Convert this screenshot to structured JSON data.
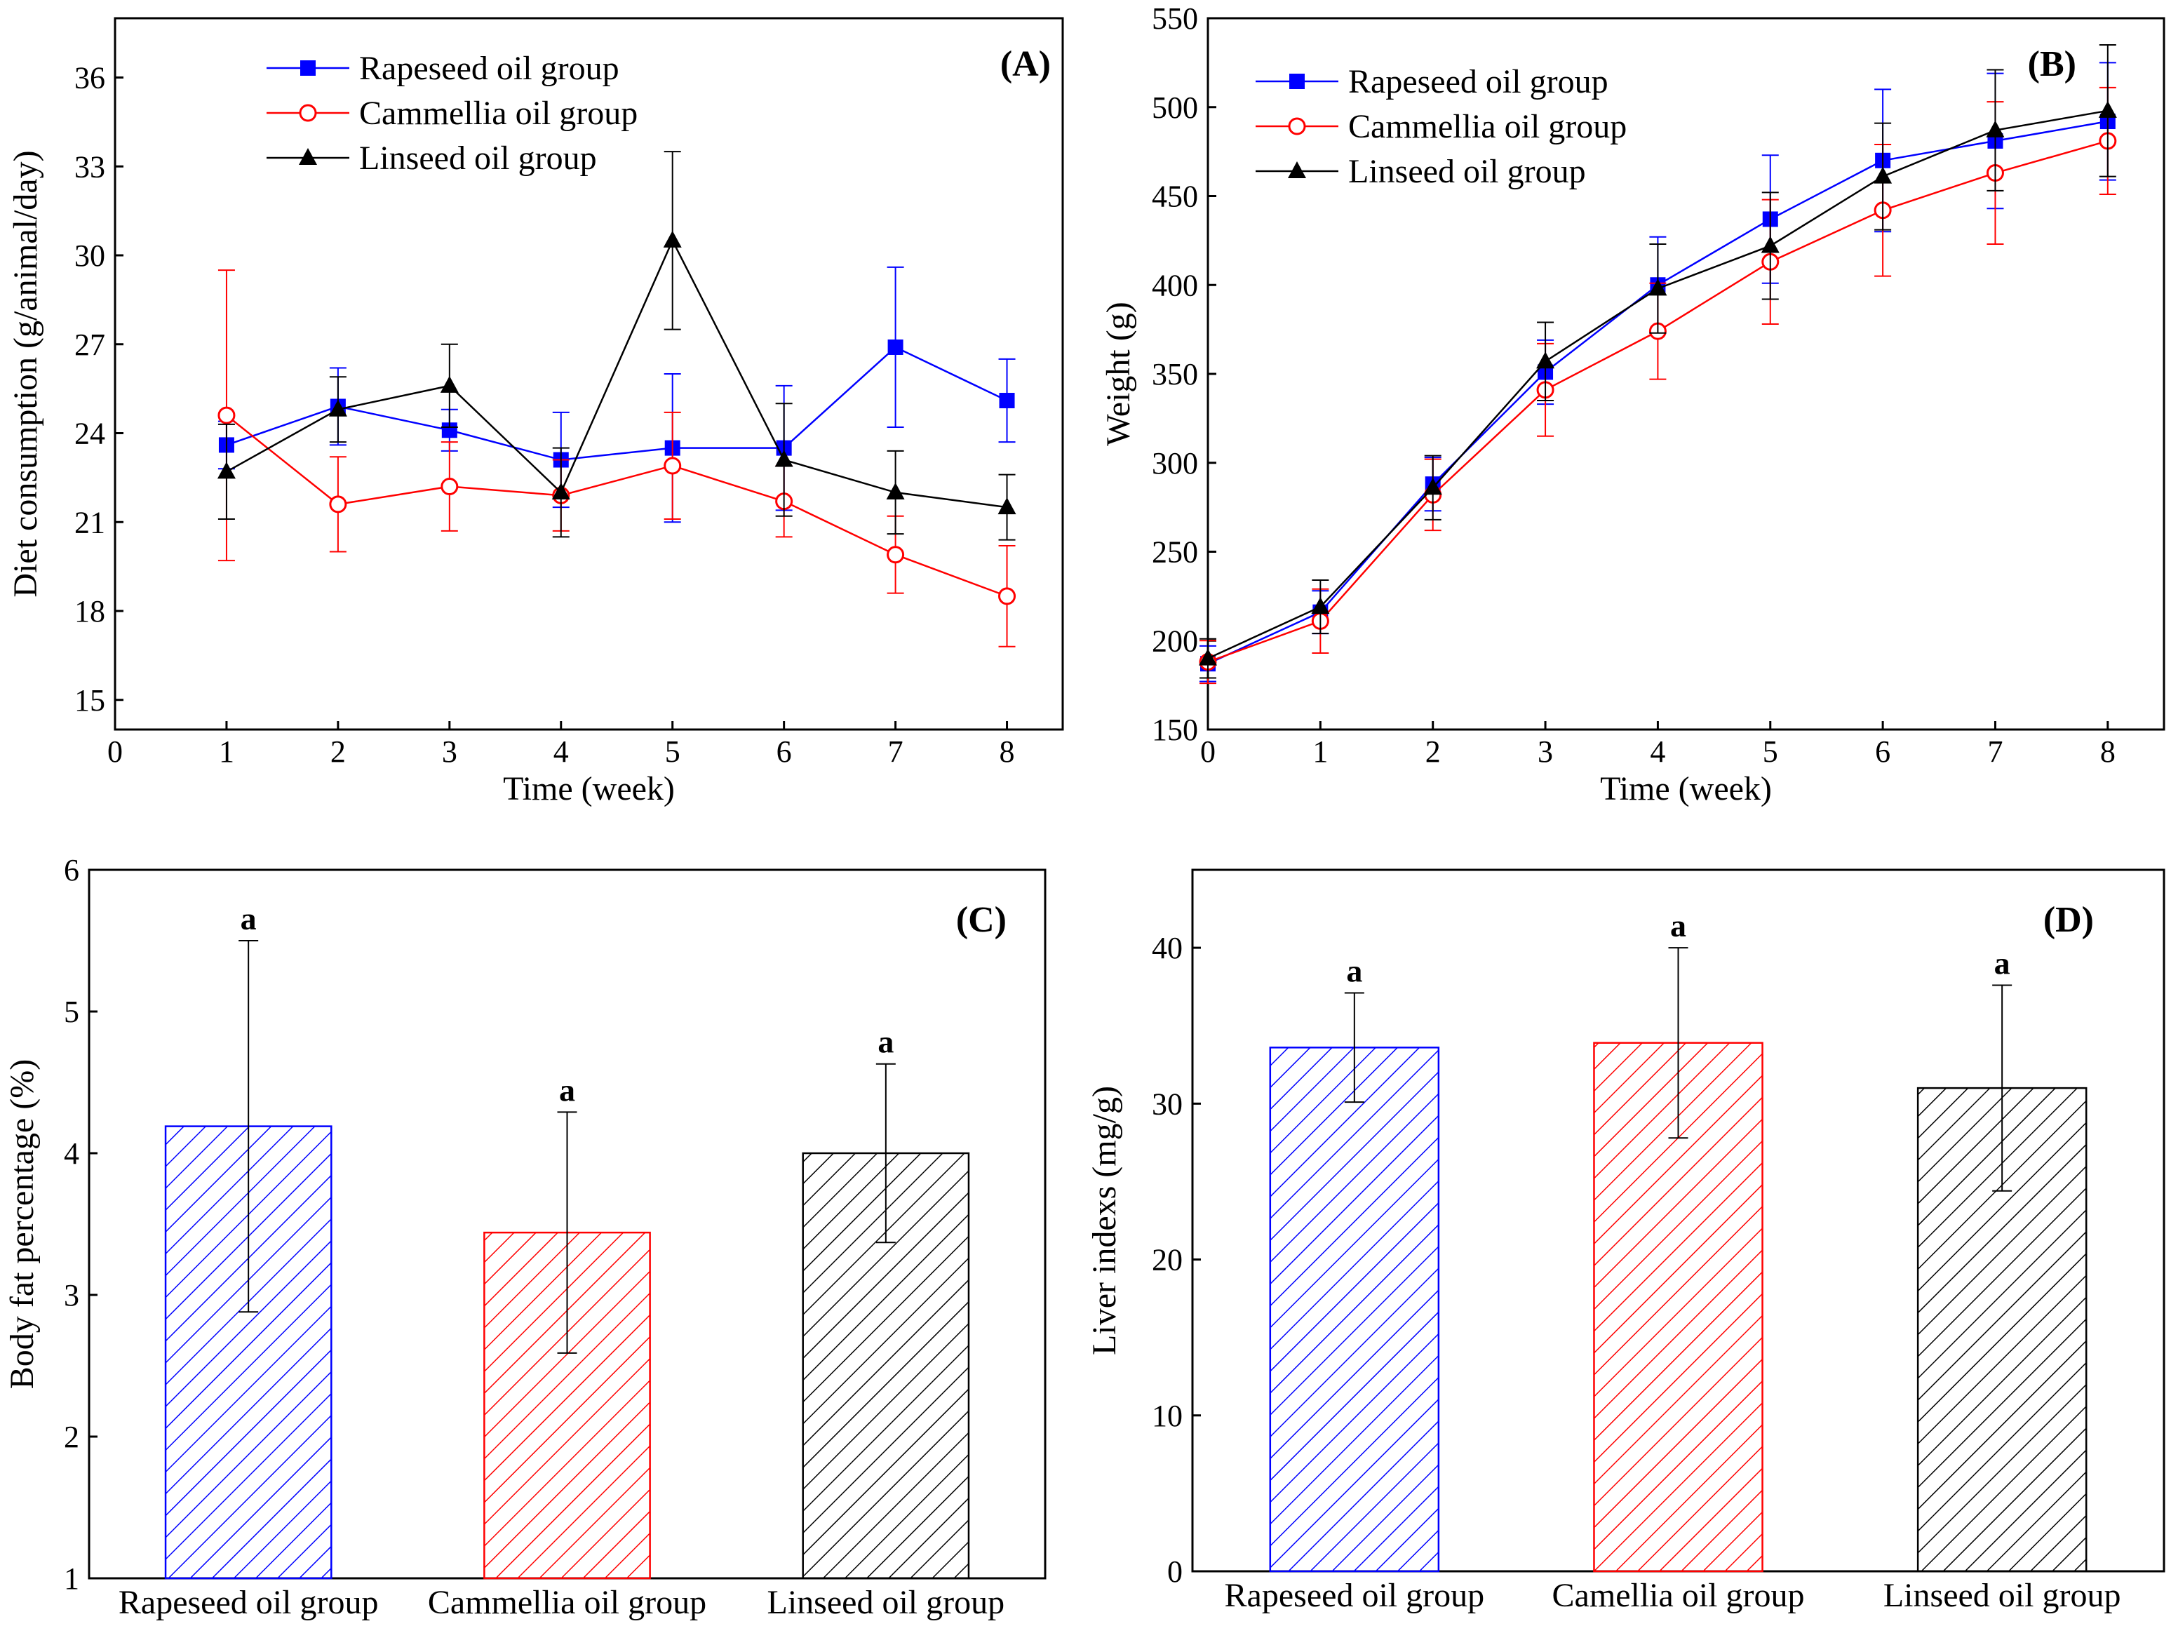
{
  "chart_data": [
    {
      "panel": "(A)",
      "type": "line",
      "xlabel": "Time (week)",
      "ylabel": "Diet consumption (g/animal/day)",
      "xlim": [
        0,
        8.5
      ],
      "ylim": [
        14,
        38
      ],
      "xticks": [
        0,
        1,
        2,
        3,
        4,
        5,
        6,
        7,
        8
      ],
      "yticks": [
        15,
        18,
        21,
        24,
        27,
        30,
        33,
        36
      ],
      "legend_position": "top-left",
      "series": [
        {
          "name": "Rapeseed oil group",
          "marker": "square-filled",
          "color": "#0000ff",
          "x": [
            1,
            2,
            3,
            4,
            5,
            6,
            7,
            8
          ],
          "values": [
            23.6,
            24.9,
            24.1,
            23.1,
            23.5,
            23.5,
            26.9,
            25.1
          ],
          "errors": [
            0.8,
            1.3,
            0.7,
            1.6,
            2.5,
            2.1,
            2.7,
            1.4
          ]
        },
        {
          "name": "Cammellia oil group",
          "marker": "circle-open",
          "color": "#ff0000",
          "x": [
            1,
            2,
            3,
            4,
            5,
            6,
            7,
            8
          ],
          "values": [
            24.6,
            21.6,
            22.2,
            21.9,
            22.9,
            21.7,
            19.9,
            18.5
          ],
          "errors": [
            4.9,
            1.6,
            1.5,
            1.2,
            1.8,
            1.2,
            1.3,
            1.7
          ]
        },
        {
          "name": "Linseed oil group",
          "marker": "triangle-filled",
          "color": "#000000",
          "x": [
            1,
            2,
            3,
            4,
            5,
            6,
            7,
            8
          ],
          "values": [
            22.7,
            24.8,
            25.6,
            22.0,
            30.5,
            23.1,
            22.0,
            21.5
          ],
          "errors": [
            1.6,
            1.1,
            1.4,
            1.5,
            3.0,
            1.9,
            1.4,
            1.1
          ]
        }
      ]
    },
    {
      "panel": "(B)",
      "type": "line",
      "xlabel": "Time (week)",
      "ylabel": "Weight (g)",
      "xlim": [
        0,
        8.5
      ],
      "ylim": [
        150,
        550
      ],
      "xticks": [
        0,
        1,
        2,
        3,
        4,
        5,
        6,
        7,
        8
      ],
      "yticks": [
        150,
        200,
        250,
        300,
        350,
        400,
        450,
        500,
        550
      ],
      "legend_position": "top-left",
      "series": [
        {
          "name": "Rapeseed oil group",
          "marker": "square-filled",
          "color": "#0000ff",
          "x": [
            0,
            1,
            2,
            3,
            4,
            5,
            6,
            7,
            8
          ],
          "values": [
            187,
            216,
            288,
            351,
            400,
            437,
            470,
            481,
            492
          ],
          "errors": [
            10,
            12,
            15,
            18,
            27,
            36,
            40,
            38,
            33
          ]
        },
        {
          "name": "Cammellia oil group",
          "marker": "circle-open",
          "color": "#ff0000",
          "x": [
            0,
            1,
            2,
            3,
            4,
            5,
            6,
            7,
            8
          ],
          "values": [
            188,
            211,
            282,
            341,
            374,
            413,
            442,
            463,
            481
          ],
          "errors": [
            12,
            18,
            20,
            26,
            27,
            35,
            37,
            40,
            30
          ]
        },
        {
          "name": "Linseed oil group",
          "marker": "triangle-filled",
          "color": "#000000",
          "x": [
            0,
            1,
            2,
            3,
            4,
            5,
            6,
            7,
            8
          ],
          "values": [
            190,
            219,
            286,
            357,
            398,
            422,
            461,
            487,
            498
          ],
          "errors": [
            11,
            15,
            18,
            22,
            25,
            30,
            30,
            34,
            37
          ]
        }
      ]
    },
    {
      "panel": "(C)",
      "type": "bar",
      "xlabel": "",
      "ylabel": "Body fat percentage (%)",
      "ylim": [
        1,
        6
      ],
      "yticks": [
        1,
        2,
        3,
        4,
        5,
        6
      ],
      "categories": [
        "Rapeseed oil group",
        "Cammellia oil group",
        "Linseed oil group"
      ],
      "values": [
        4.19,
        3.44,
        4.0
      ],
      "errors": [
        1.31,
        0.85,
        0.63
      ],
      "letters": [
        "a",
        "a",
        "a"
      ],
      "colors": [
        "#0000ff",
        "#ff0000",
        "#000000"
      ]
    },
    {
      "panel": "(D)",
      "type": "bar",
      "xlabel": "",
      "ylabel": "Liver indexs (mg/g)",
      "ylim": [
        0,
        45
      ],
      "yticks": [
        0,
        10,
        20,
        30,
        40
      ],
      "categories": [
        "Rapeseed oil group",
        "Camellia oil group",
        "Linseed oil group"
      ],
      "values": [
        33.6,
        33.9,
        31.0
      ],
      "errors": [
        3.5,
        6.1,
        6.6
      ],
      "letters": [
        "a",
        "a",
        "a"
      ],
      "colors": [
        "#0000ff",
        "#ff0000",
        "#000000"
      ]
    }
  ]
}
